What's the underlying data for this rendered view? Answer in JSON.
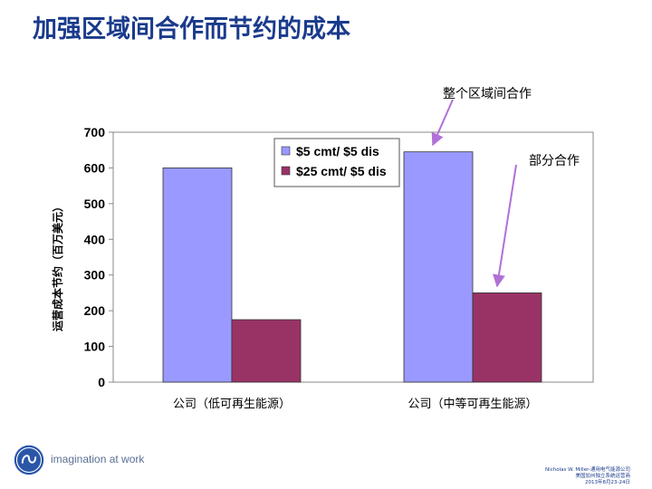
{
  "page": {
    "title": "加强区域间合作而节约的成本",
    "brand_tagline": "imagination at work",
    "footer_lines": [
      "Nicholas W. Miller-通用电气能源公司",
      "美国加州独立系统运营商",
      "2013年8月23-24日"
    ]
  },
  "chart_data": {
    "type": "bar",
    "title": "",
    "xlabel": "",
    "ylabel": "运营成本节约（百万美元）",
    "ylim": [
      0,
      700
    ],
    "yticks": [
      0,
      100,
      200,
      300,
      400,
      500,
      600,
      700
    ],
    "categories": [
      "公司（低可再生能源）",
      "公司（中等可再生能源）"
    ],
    "series": [
      {
        "name": "$5 cmt/ $5 dis",
        "values": [
          600,
          645
        ],
        "color": "#9999ff"
      },
      {
        "name": "$25 cmt/ $5 dis",
        "values": [
          175,
          250
        ],
        "color": "#993366"
      }
    ],
    "legend_position": "top-center",
    "grid": false,
    "annotations": [
      {
        "text": "整个区域间合作",
        "target_category": 1,
        "target_series": 0
      },
      {
        "text": "部分合作",
        "target_category": 1,
        "target_series": 1
      }
    ],
    "arrow_color": "#b070d8"
  }
}
